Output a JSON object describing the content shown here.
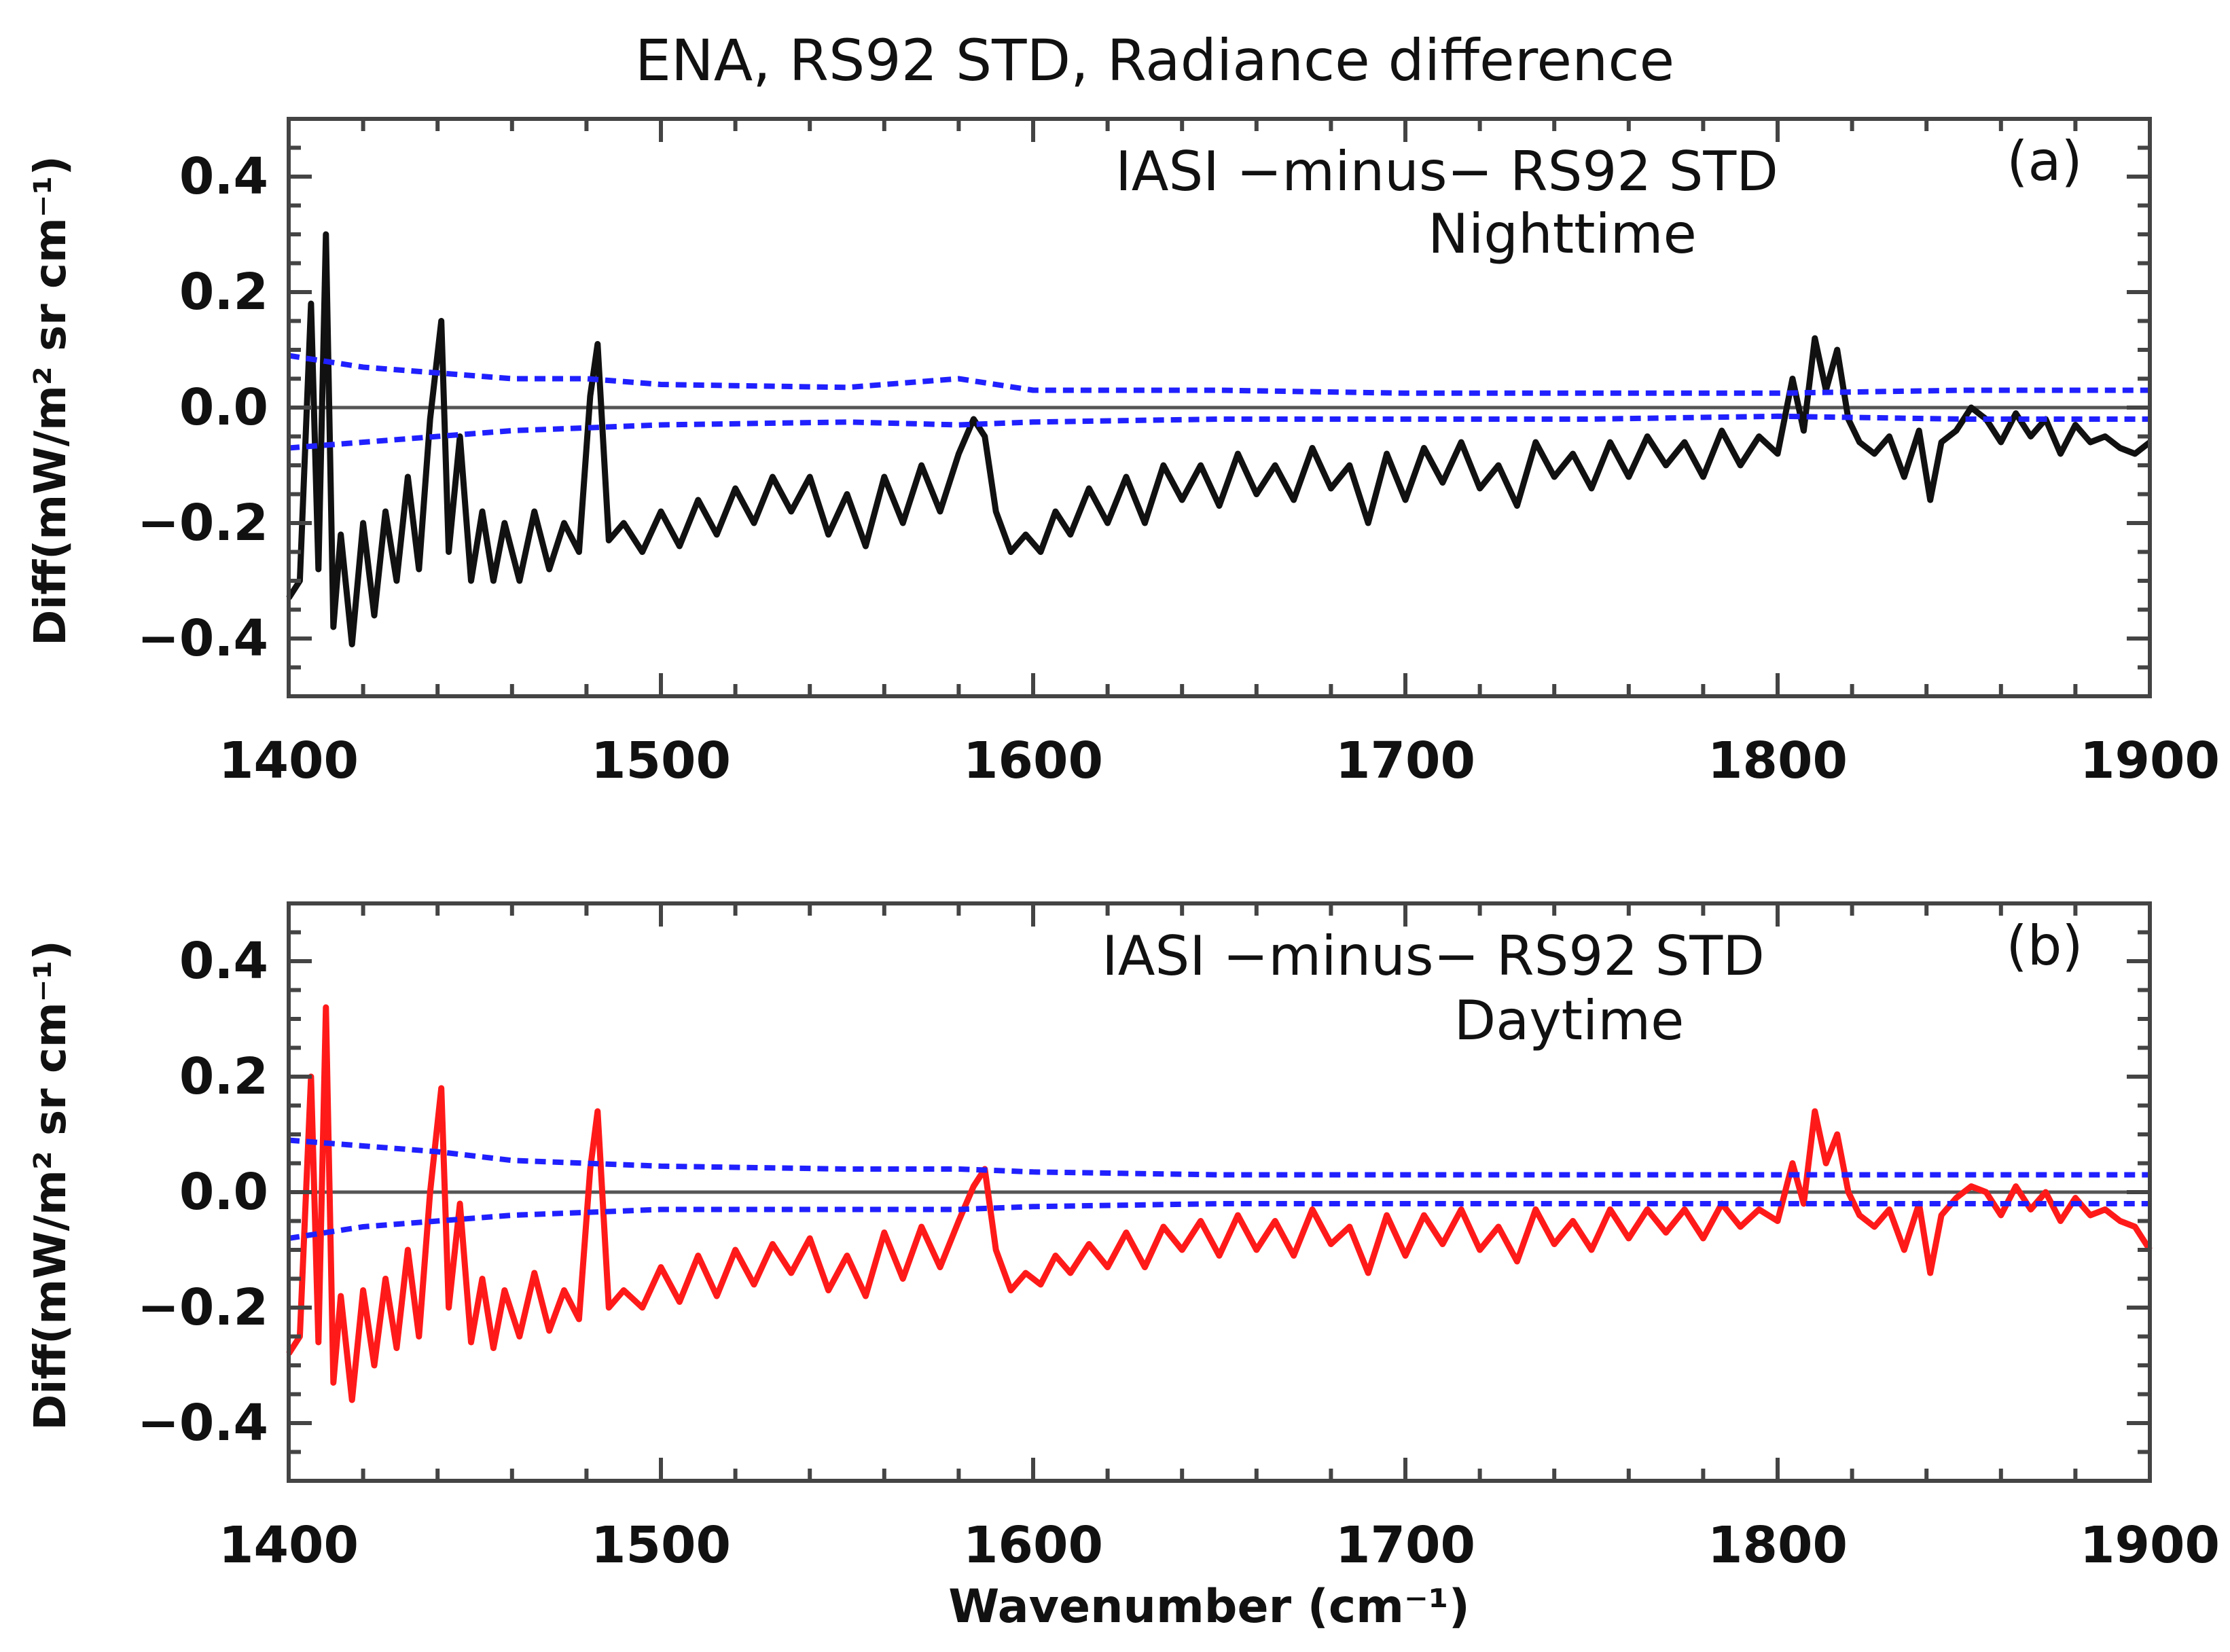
{
  "figure": {
    "title": "ENA, RS92 STD, Radiance difference",
    "xlabel": "Wavenumber (cm⁻¹)"
  },
  "colors": {
    "night": "#111111",
    "day": "#ff1a1a",
    "std": "#2020ff",
    "zero": "#555555"
  },
  "chart_data": [
    {
      "type": "line",
      "panel_label": "(a)",
      "line1": "IASI −minus− RS92 STD",
      "line2": "Nighttime",
      "xlabel": "",
      "ylabel": "Diff(mW/m² sr cm⁻¹)",
      "xlim": [
        1400,
        1900
      ],
      "ylim": [
        -0.5,
        0.5
      ],
      "xticks": [
        "1400",
        "1500",
        "1600",
        "1700",
        "1800",
        "1900"
      ],
      "yticks": [
        "0.4",
        "0.2",
        "0.0",
        "−0.2",
        "−0.4"
      ],
      "grid": false,
      "series": [
        {
          "name": "IASI minus RS92 STD (night)",
          "style": "solid",
          "x": [
            1400,
            1403,
            1406,
            1408,
            1410,
            1412,
            1414,
            1417,
            1420,
            1423,
            1426,
            1429,
            1432,
            1435,
            1438,
            1441,
            1443,
            1446,
            1449,
            1452,
            1455,
            1458,
            1462,
            1466,
            1470,
            1474,
            1478,
            1481,
            1483,
            1486,
            1490,
            1495,
            1500,
            1505,
            1510,
            1515,
            1520,
            1525,
            1530,
            1535,
            1540,
            1545,
            1550,
            1555,
            1560,
            1565,
            1570,
            1575,
            1580,
            1584,
            1587,
            1590,
            1594,
            1598,
            1602,
            1606,
            1610,
            1615,
            1620,
            1625,
            1630,
            1635,
            1640,
            1645,
            1650,
            1655,
            1660,
            1665,
            1670,
            1675,
            1680,
            1685,
            1690,
            1695,
            1700,
            1705,
            1710,
            1715,
            1720,
            1725,
            1730,
            1735,
            1740,
            1745,
            1750,
            1755,
            1760,
            1765,
            1770,
            1775,
            1780,
            1785,
            1790,
            1795,
            1800,
            1804,
            1807,
            1810,
            1813,
            1816,
            1819,
            1822,
            1826,
            1830,
            1834,
            1838,
            1841,
            1844,
            1848,
            1852,
            1856,
            1860,
            1864,
            1868,
            1872,
            1876,
            1880,
            1884,
            1888,
            1892,
            1896,
            1900
          ],
          "values": [
            -0.33,
            -0.3,
            0.18,
            -0.28,
            0.3,
            -0.38,
            -0.22,
            -0.41,
            -0.2,
            -0.36,
            -0.18,
            -0.3,
            -0.12,
            -0.28,
            -0.02,
            0.15,
            -0.25,
            -0.05,
            -0.3,
            -0.18,
            -0.3,
            -0.2,
            -0.3,
            -0.18,
            -0.28,
            -0.2,
            -0.25,
            0.02,
            0.11,
            -0.23,
            -0.2,
            -0.25,
            -0.18,
            -0.24,
            -0.16,
            -0.22,
            -0.14,
            -0.2,
            -0.12,
            -0.18,
            -0.12,
            -0.22,
            -0.15,
            -0.24,
            -0.12,
            -0.2,
            -0.1,
            -0.18,
            -0.08,
            -0.02,
            -0.05,
            -0.18,
            -0.25,
            -0.22,
            -0.25,
            -0.18,
            -0.22,
            -0.14,
            -0.2,
            -0.12,
            -0.2,
            -0.1,
            -0.16,
            -0.1,
            -0.17,
            -0.08,
            -0.15,
            -0.1,
            -0.16,
            -0.07,
            -0.14,
            -0.1,
            -0.2,
            -0.08,
            -0.16,
            -0.07,
            -0.13,
            -0.06,
            -0.14,
            -0.1,
            -0.17,
            -0.06,
            -0.12,
            -0.08,
            -0.14,
            -0.06,
            -0.12,
            -0.05,
            -0.1,
            -0.06,
            -0.12,
            -0.04,
            -0.1,
            -0.05,
            -0.08,
            0.05,
            -0.04,
            0.12,
            0.03,
            0.1,
            -0.02,
            -0.06,
            -0.08,
            -0.05,
            -0.12,
            -0.04,
            -0.16,
            -0.06,
            -0.04,
            0.0,
            -0.02,
            -0.06,
            -0.01,
            -0.05,
            -0.02,
            -0.08,
            -0.03,
            -0.06,
            -0.05,
            -0.07,
            -0.08,
            -0.06
          ]
        },
        {
          "name": "upper std",
          "style": "dashed",
          "x": [
            1400,
            1420,
            1440,
            1460,
            1480,
            1500,
            1550,
            1580,
            1600,
            1650,
            1700,
            1750,
            1800,
            1850,
            1900
          ],
          "values": [
            0.09,
            0.07,
            0.06,
            0.05,
            0.05,
            0.04,
            0.035,
            0.05,
            0.03,
            0.03,
            0.025,
            0.025,
            0.025,
            0.03,
            0.03
          ]
        },
        {
          "name": "lower std",
          "style": "dashed",
          "x": [
            1400,
            1420,
            1440,
            1460,
            1480,
            1500,
            1550,
            1580,
            1600,
            1650,
            1700,
            1750,
            1800,
            1850,
            1900
          ],
          "values": [
            -0.07,
            -0.06,
            -0.05,
            -0.04,
            -0.035,
            -0.03,
            -0.025,
            -0.03,
            -0.025,
            -0.02,
            -0.02,
            -0.02,
            -0.015,
            -0.02,
            -0.02
          ]
        }
      ]
    },
    {
      "type": "line",
      "panel_label": "(b)",
      "line1": "IASI −minus− RS92 STD",
      "line2": "Daytime",
      "xlabel": "Wavenumber (cm⁻¹)",
      "ylabel": "Diff(mW/m² sr cm⁻¹)",
      "xlim": [
        1400,
        1900
      ],
      "ylim": [
        -0.5,
        0.5
      ],
      "xticks": [
        "1400",
        "1500",
        "1600",
        "1700",
        "1800",
        "1900"
      ],
      "yticks": [
        "0.4",
        "0.2",
        "0.0",
        "−0.2",
        "−0.4"
      ],
      "grid": false,
      "series": [
        {
          "name": "IASI minus RS92 STD (day)",
          "style": "solid",
          "x": [
            1400,
            1403,
            1406,
            1408,
            1410,
            1412,
            1414,
            1417,
            1420,
            1423,
            1426,
            1429,
            1432,
            1435,
            1438,
            1441,
            1443,
            1446,
            1449,
            1452,
            1455,
            1458,
            1462,
            1466,
            1470,
            1474,
            1478,
            1481,
            1483,
            1486,
            1490,
            1495,
            1500,
            1505,
            1510,
            1515,
            1520,
            1525,
            1530,
            1535,
            1540,
            1545,
            1550,
            1555,
            1560,
            1565,
            1570,
            1575,
            1580,
            1584,
            1587,
            1590,
            1594,
            1598,
            1602,
            1606,
            1610,
            1615,
            1620,
            1625,
            1630,
            1635,
            1640,
            1645,
            1650,
            1655,
            1660,
            1665,
            1670,
            1675,
            1680,
            1685,
            1690,
            1695,
            1700,
            1705,
            1710,
            1715,
            1720,
            1725,
            1730,
            1735,
            1740,
            1745,
            1750,
            1755,
            1760,
            1765,
            1770,
            1775,
            1780,
            1785,
            1790,
            1795,
            1800,
            1804,
            1807,
            1810,
            1813,
            1816,
            1819,
            1822,
            1826,
            1830,
            1834,
            1838,
            1841,
            1844,
            1848,
            1852,
            1856,
            1860,
            1864,
            1868,
            1872,
            1876,
            1880,
            1884,
            1888,
            1892,
            1896,
            1900
          ],
          "values": [
            -0.28,
            -0.25,
            0.2,
            -0.26,
            0.32,
            -0.33,
            -0.18,
            -0.36,
            -0.17,
            -0.3,
            -0.15,
            -0.27,
            -0.1,
            -0.25,
            0.0,
            0.18,
            -0.2,
            -0.02,
            -0.26,
            -0.15,
            -0.27,
            -0.17,
            -0.25,
            -0.14,
            -0.24,
            -0.17,
            -0.22,
            0.04,
            0.14,
            -0.2,
            -0.17,
            -0.2,
            -0.13,
            -0.19,
            -0.11,
            -0.18,
            -0.1,
            -0.16,
            -0.09,
            -0.14,
            -0.08,
            -0.17,
            -0.11,
            -0.18,
            -0.07,
            -0.15,
            -0.06,
            -0.13,
            -0.05,
            0.01,
            0.04,
            -0.1,
            -0.17,
            -0.14,
            -0.16,
            -0.11,
            -0.14,
            -0.09,
            -0.13,
            -0.07,
            -0.13,
            -0.06,
            -0.1,
            -0.05,
            -0.11,
            -0.04,
            -0.1,
            -0.05,
            -0.11,
            -0.03,
            -0.09,
            -0.06,
            -0.14,
            -0.04,
            -0.11,
            -0.04,
            -0.09,
            -0.03,
            -0.1,
            -0.06,
            -0.12,
            -0.03,
            -0.09,
            -0.05,
            -0.1,
            -0.03,
            -0.08,
            -0.03,
            -0.07,
            -0.03,
            -0.08,
            -0.02,
            -0.06,
            -0.03,
            -0.05,
            0.05,
            -0.02,
            0.14,
            0.05,
            0.1,
            0.0,
            -0.04,
            -0.06,
            -0.03,
            -0.1,
            -0.02,
            -0.14,
            -0.04,
            -0.01,
            0.01,
            0.0,
            -0.04,
            0.01,
            -0.03,
            0.0,
            -0.05,
            -0.01,
            -0.04,
            -0.03,
            -0.05,
            -0.06,
            -0.1
          ]
        },
        {
          "name": "upper std",
          "style": "dashed",
          "x": [
            1400,
            1420,
            1440,
            1460,
            1480,
            1500,
            1550,
            1580,
            1600,
            1650,
            1700,
            1750,
            1800,
            1850,
            1900
          ],
          "values": [
            0.09,
            0.08,
            0.07,
            0.055,
            0.05,
            0.045,
            0.04,
            0.04,
            0.035,
            0.03,
            0.03,
            0.03,
            0.03,
            0.03,
            0.03
          ]
        },
        {
          "name": "lower std",
          "style": "dashed",
          "x": [
            1400,
            1420,
            1440,
            1460,
            1480,
            1500,
            1550,
            1580,
            1600,
            1650,
            1700,
            1750,
            1800,
            1850,
            1900
          ],
          "values": [
            -0.08,
            -0.06,
            -0.05,
            -0.04,
            -0.035,
            -0.03,
            -0.03,
            -0.03,
            -0.025,
            -0.02,
            -0.02,
            -0.02,
            -0.02,
            -0.02,
            -0.02
          ]
        }
      ]
    }
  ]
}
